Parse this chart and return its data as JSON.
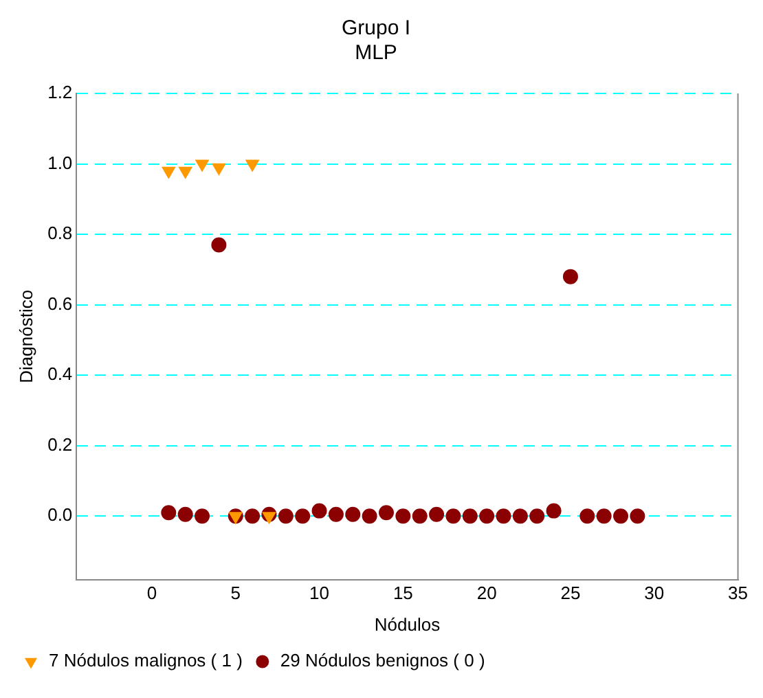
{
  "chart_data": {
    "type": "scatter",
    "title": "Grupo I\nMLP",
    "xlabel": "Nódulos",
    "ylabel": "Diagnóstico",
    "xlim": [
      -4.5,
      35
    ],
    "xticks": [
      0,
      5,
      10,
      15,
      20,
      25,
      30,
      35
    ],
    "ylim": [
      -0.18,
      1.2
    ],
    "yticks": [
      {
        "value": 0,
        "label": "0.0"
      },
      {
        "value": 0.2,
        "label": "0.2"
      },
      {
        "value": 0.4,
        "label": "0.4"
      },
      {
        "value": 0.6,
        "label": "0.6"
      },
      {
        "value": 0.8,
        "label": "0.8"
      },
      {
        "value": 1,
        "label": "1.0"
      },
      {
        "value": 1.2,
        "label": "1.2"
      }
    ],
    "grid": "y",
    "line_style": "dashed",
    "legend": "bottom left",
    "series": [
      {
        "name": "29 Nódulos benignos ( 0 )",
        "color": "#8b0000",
        "marker": "circle",
        "x": [
          1,
          2,
          3,
          4,
          5,
          6,
          7,
          8,
          9,
          10,
          11,
          12,
          13,
          14,
          15,
          16,
          17,
          18,
          19,
          20,
          21,
          22,
          23,
          24,
          25,
          26,
          27,
          28,
          29
        ],
        "values": [
          0.01,
          0.005,
          0,
          0.77,
          0,
          0,
          0.005,
          0,
          0,
          0.015,
          0.005,
          0.005,
          0,
          0.01,
          0,
          0,
          0.005,
          0,
          0,
          0,
          0,
          0,
          0,
          0.015,
          0.68,
          0,
          0,
          0,
          0
        ]
      },
      {
        "name": "7 Nódulos malignos ( 1 )",
        "color": "#ff9900",
        "marker": "triangle",
        "x": [
          1,
          2,
          3,
          4,
          5,
          6,
          7
        ],
        "values": [
          0.98,
          0.98,
          1.0,
          0.99,
          0,
          1.0,
          0
        ]
      }
    ]
  }
}
